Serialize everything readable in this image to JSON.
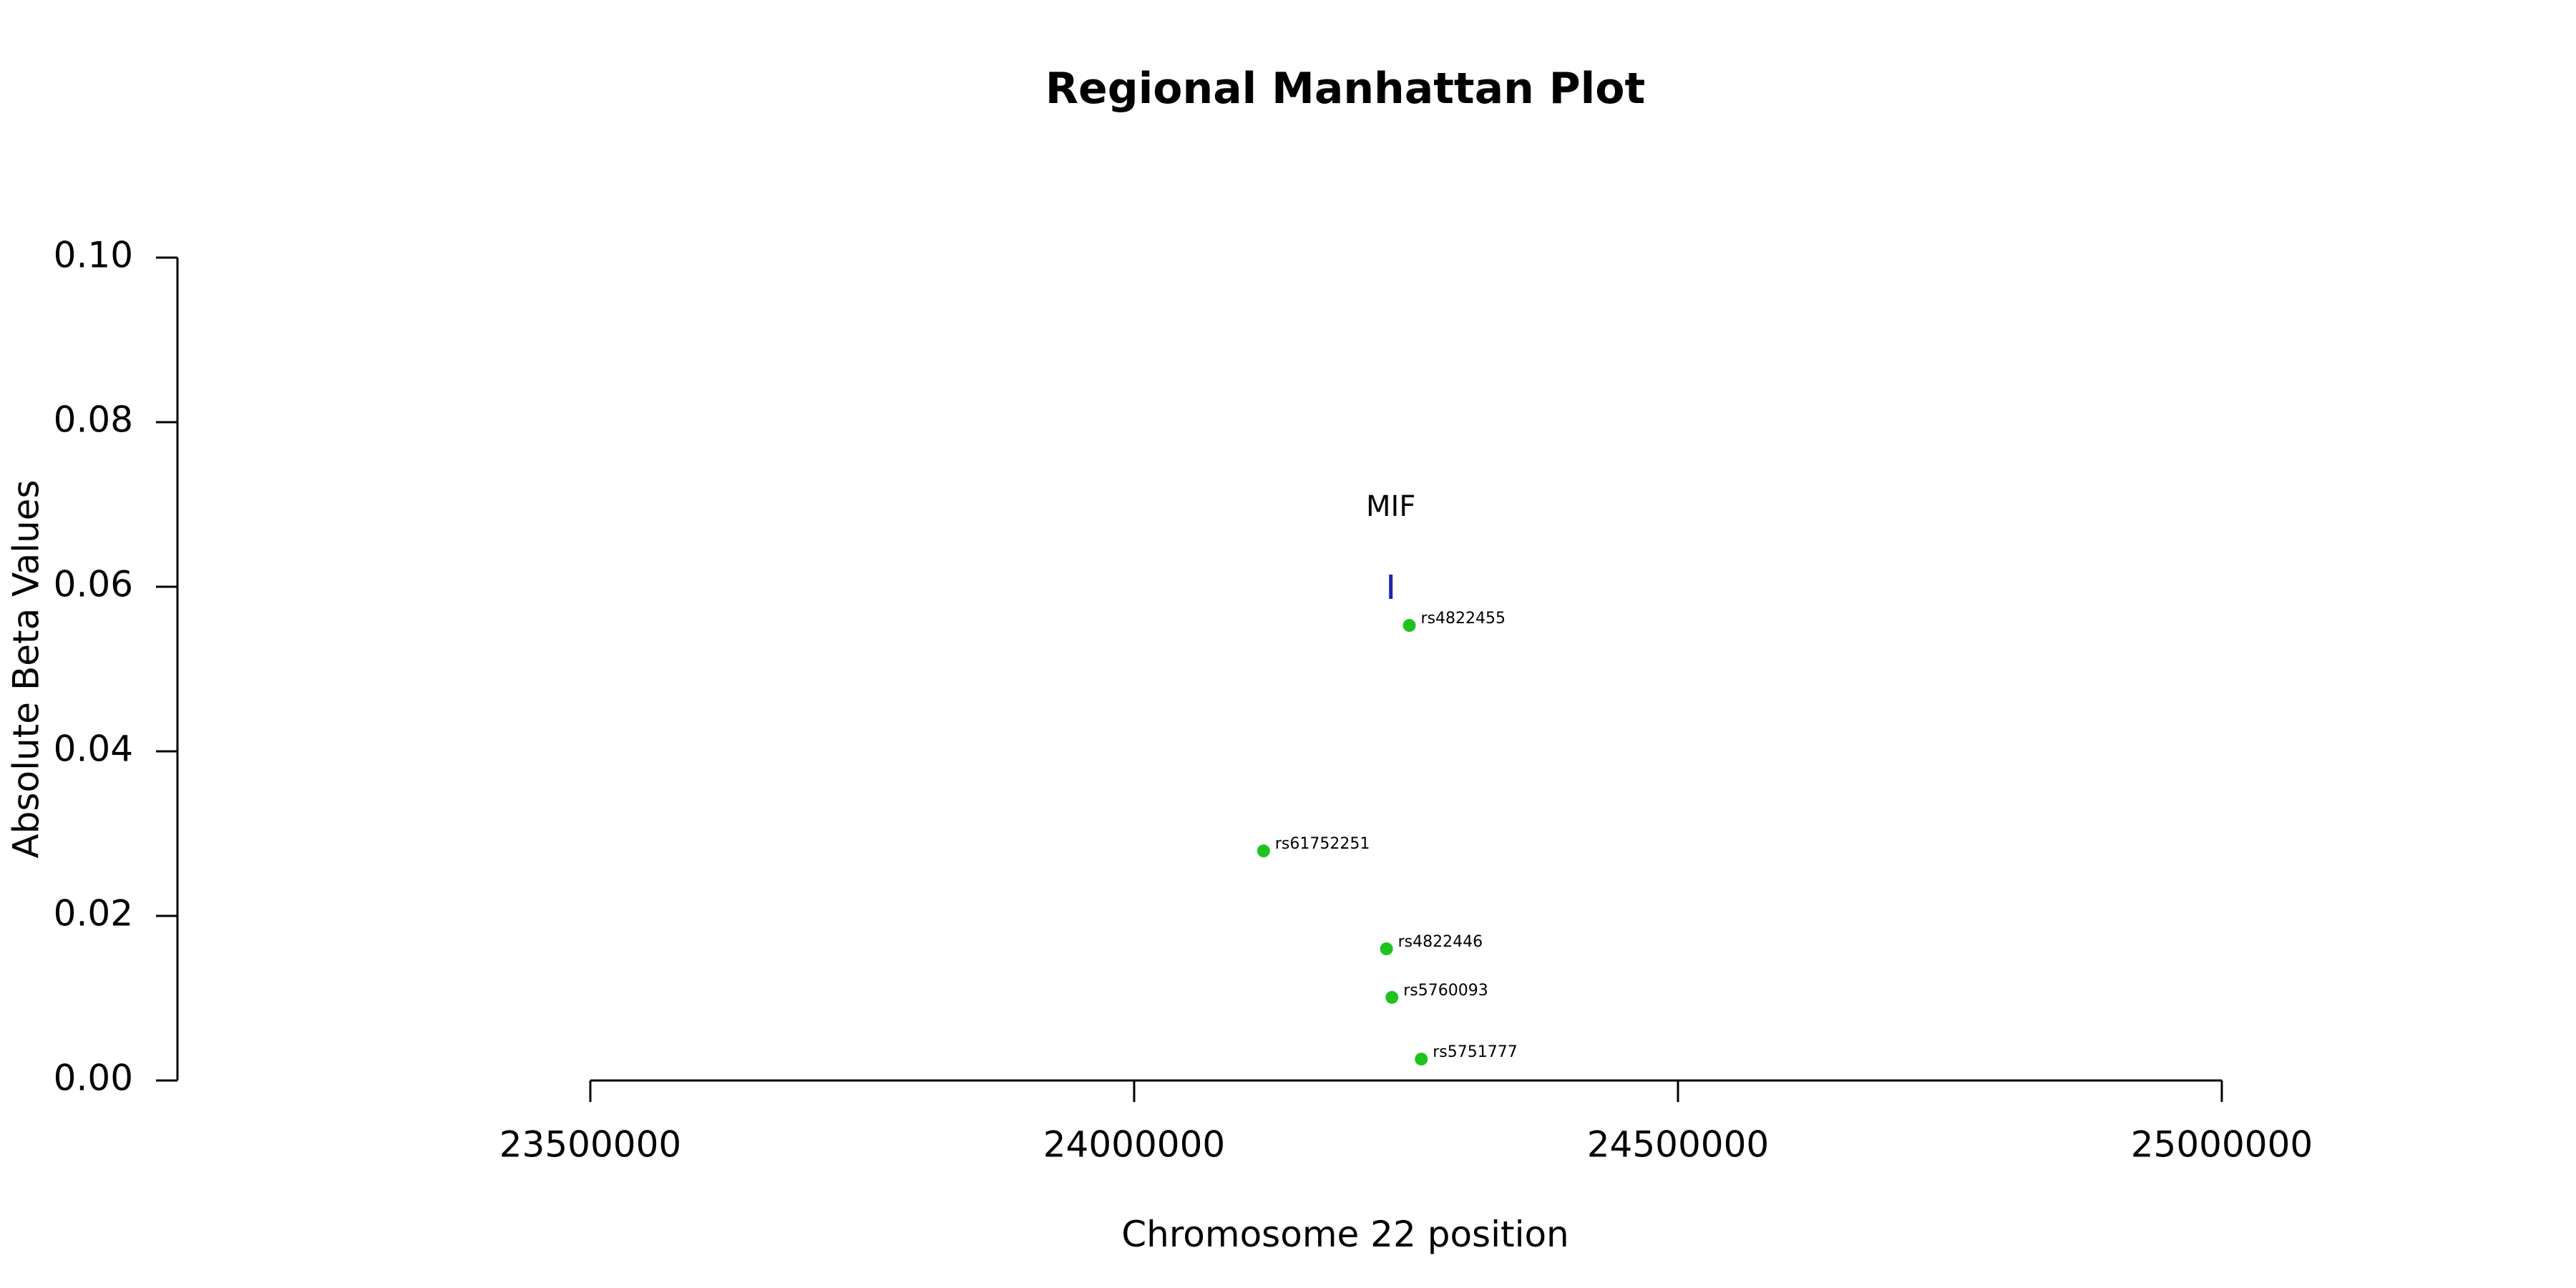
{
  "chart_data": {
    "type": "scatter",
    "title": "Regional Manhattan Plot",
    "xlabel": "Chromosome 22 position",
    "ylabel": "Absolute Beta Values",
    "xlim": [
      23500000,
      25000000
    ],
    "ylim": [
      0.0,
      0.1
    ],
    "x_ticks": [
      23500000,
      24000000,
      24500000,
      25000000
    ],
    "x_tick_labels": [
      "23500000",
      "24000000",
      "24500000",
      "25000000"
    ],
    "y_ticks": [
      0.0,
      0.02,
      0.04,
      0.06,
      0.08,
      0.1
    ],
    "y_tick_labels": [
      "0.00",
      "0.02",
      "0.04",
      "0.06",
      "0.08",
      "0.10"
    ],
    "grid": false,
    "point_color": "#1fc31f",
    "gene_color": "#2222b0",
    "points": [
      {
        "label": "rs4822455",
        "x": 24253000,
        "y": 0.0553
      },
      {
        "label": "rs61752251",
        "x": 24119000,
        "y": 0.0279
      },
      {
        "label": "rs4822446",
        "x": 24232000,
        "y": 0.016
      },
      {
        "label": "rs5760093",
        "x": 24237000,
        "y": 0.0101
      },
      {
        "label": "rs5751777",
        "x": 24264000,
        "y": 0.0026
      }
    ],
    "genes": [
      {
        "name": "MIF",
        "x": 24236000,
        "y": 0.06
      }
    ]
  }
}
